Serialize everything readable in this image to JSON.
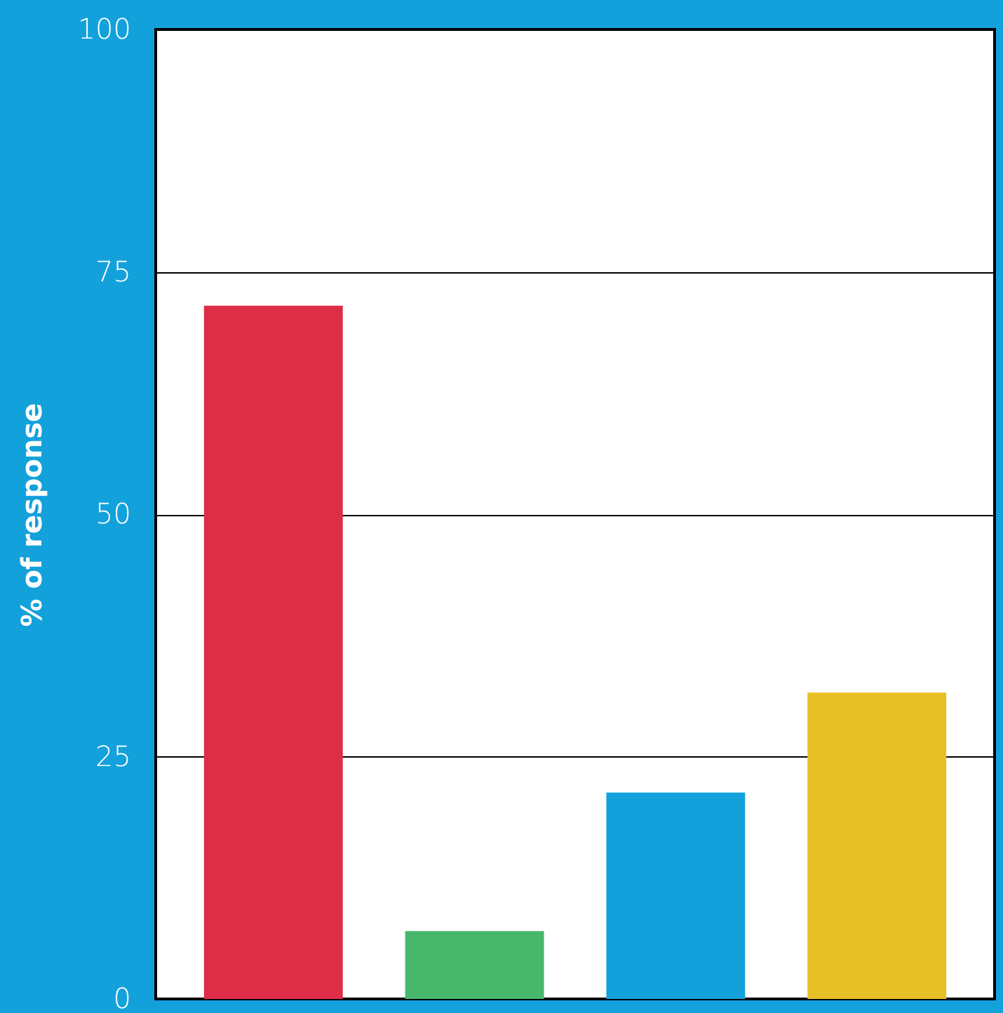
{
  "chart_data": {
    "type": "bar",
    "ylabel": "% of response",
    "categories": [
      null,
      null,
      null,
      null
    ],
    "values": [
      71.5,
      7,
      21.3,
      31.6
    ],
    "colors": [
      "#de2d47",
      "#47b86b",
      "#13a1dc",
      "#e8c027"
    ],
    "ylim": [
      0,
      100
    ],
    "yticks": [
      0,
      25,
      50,
      75,
      100
    ],
    "grid": "y",
    "tick_labels": "y"
  }
}
